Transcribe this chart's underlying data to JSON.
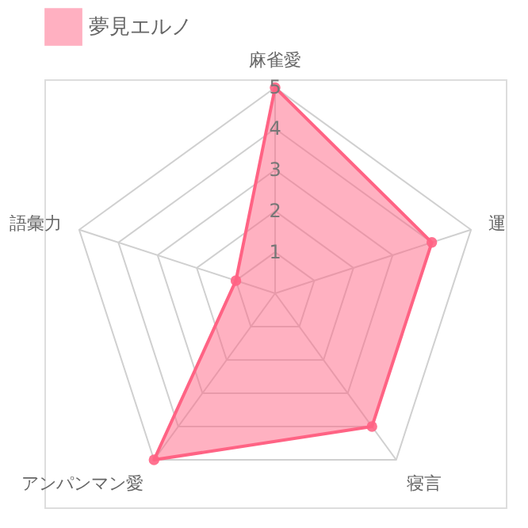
{
  "chart_data": {
    "type": "radar",
    "categories": [
      "麻雀愛",
      "運",
      "寝言",
      "アンパンマン愛",
      "語彙力"
    ],
    "series": [
      {
        "name": "夢見エルノ",
        "color": "#ff6384",
        "values": [
          5,
          4,
          4,
          5,
          1
        ]
      }
    ],
    "ylim": [
      0,
      5
    ],
    "yticks": [
      1,
      2,
      3,
      4,
      5
    ],
    "grid": true,
    "legend": "top",
    "marker": "circle"
  }
}
